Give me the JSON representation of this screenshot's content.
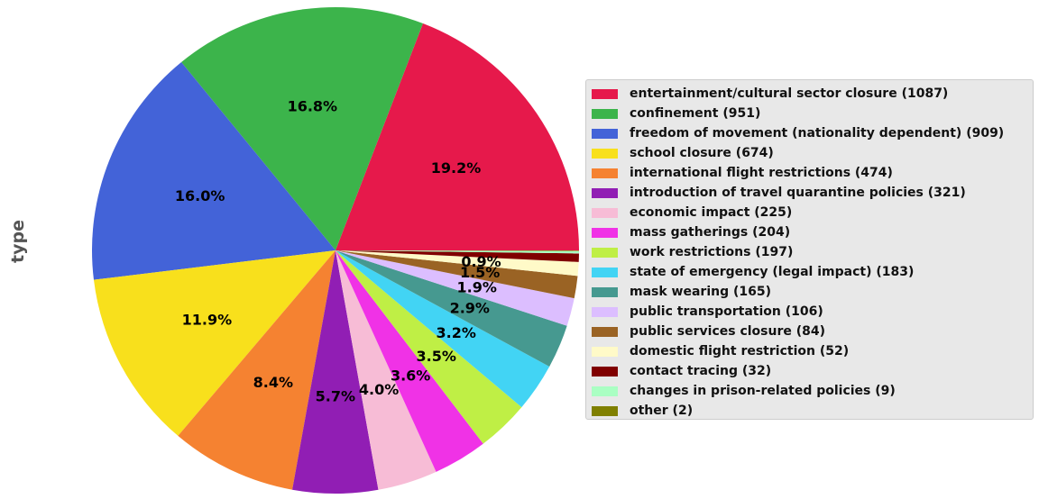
{
  "chart_data": {
    "type": "pie",
    "ylabel": "type",
    "title": "",
    "legend_position": "right",
    "slices": [
      {
        "label": "entertainment/cultural sector closure (1087)",
        "value": 1087,
        "percent_label": "19.2%",
        "color": "#e6194b"
      },
      {
        "label": "confinement (951)",
        "value": 951,
        "percent_label": "16.8%",
        "color": "#3cb44b"
      },
      {
        "label": "freedom of movement (nationality dependent) (909)",
        "value": 909,
        "percent_label": "16.0%",
        "color": "#4363d8"
      },
      {
        "label": "school closure (674)",
        "value": 674,
        "percent_label": "11.9%",
        "color": "#f8e01c"
      },
      {
        "label": "international flight restrictions (474)",
        "value": 474,
        "percent_label": "8.4%",
        "color": "#f58231"
      },
      {
        "label": "introduction of travel quarantine policies (321)",
        "value": 321,
        "percent_label": "5.7%",
        "color": "#911eb4"
      },
      {
        "label": "economic impact (225)",
        "value": 225,
        "percent_label": "4.0%",
        "color": "#f7bcd6"
      },
      {
        "label": "mass gatherings (204)",
        "value": 204,
        "percent_label": "3.6%",
        "color": "#f032e6"
      },
      {
        "label": "work restrictions (197)",
        "value": 197,
        "percent_label": "3.5%",
        "color": "#bfef45"
      },
      {
        "label": "state of emergency (legal impact) (183)",
        "value": 183,
        "percent_label": "3.2%",
        "color": "#42d4f4"
      },
      {
        "label": "mask wearing (165)",
        "value": 165,
        "percent_label": "2.9%",
        "color": "#469990"
      },
      {
        "label": "public transportation (106)",
        "value": 106,
        "percent_label": "1.9%",
        "color": "#dcbeff"
      },
      {
        "label": "public services closure (84)",
        "value": 84,
        "percent_label": "1.5%",
        "color": "#9a6324"
      },
      {
        "label": "domestic flight restriction (52)",
        "value": 52,
        "percent_label": "0.9%",
        "color": "#fffac8"
      },
      {
        "label": "contact tracing (32)",
        "value": 32,
        "percent_label": "",
        "color": "#800000"
      },
      {
        "label": "changes in prison-related policies (9)",
        "value": 9,
        "percent_label": "",
        "color": "#aaffc3"
      },
      {
        "label": "other (2)",
        "value": 2,
        "percent_label": "",
        "color": "#808000"
      }
    ]
  }
}
